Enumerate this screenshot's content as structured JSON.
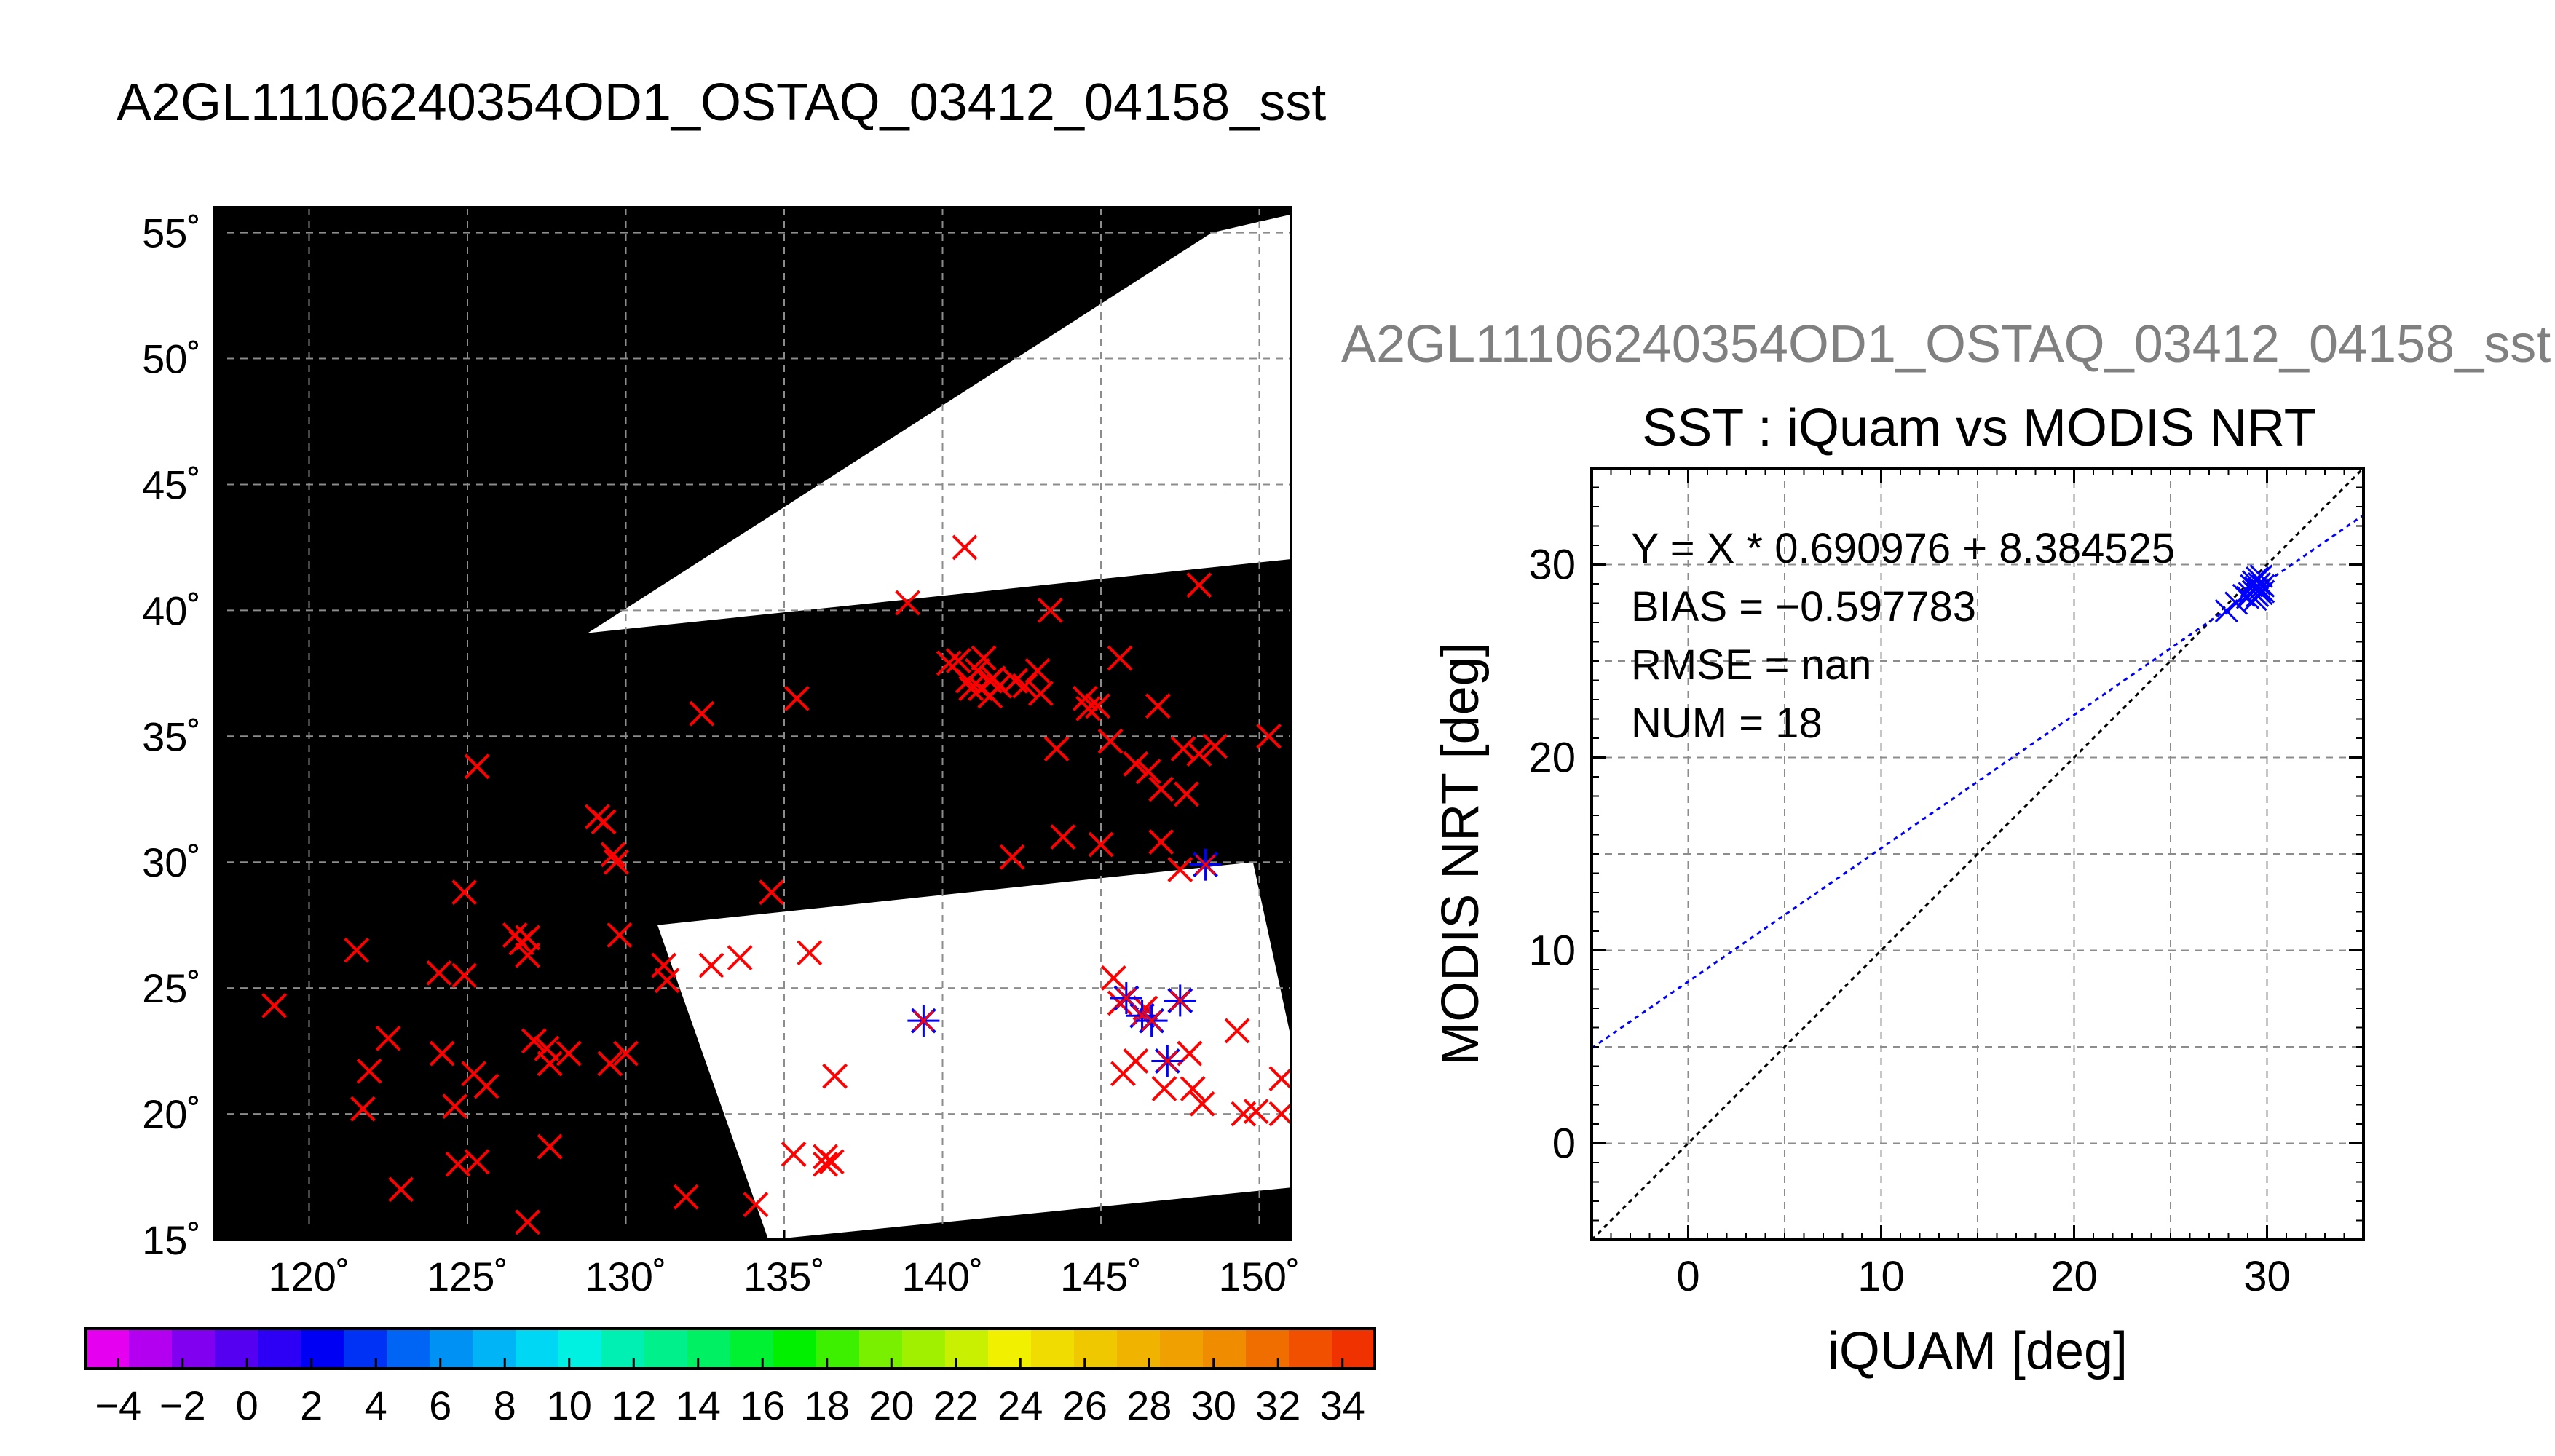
{
  "page_title": "A2GL11106240354OD1_OSTAQ_03412_04158_sst",
  "chart_data": [
    {
      "type": "map",
      "title": "A2GL11106240354OD1_OSTAQ_03412_04158_sst",
      "lon_range": [
        117,
        151
      ],
      "lat_range": [
        15,
        56
      ],
      "lon_ticks": [
        120,
        125,
        130,
        135,
        140,
        145,
        150
      ],
      "lat_ticks": [
        15,
        20,
        25,
        30,
        35,
        40,
        45,
        50,
        55
      ],
      "lon_tick_labels": [
        "120˚",
        "125˚",
        "130˚",
        "135˚",
        "140˚",
        "145˚",
        "150˚"
      ],
      "lat_tick_labels": [
        "15˚",
        "20˚",
        "25˚",
        "30˚",
        "35˚",
        "40˚",
        "45˚",
        "50˚",
        "55˚"
      ],
      "grid": true,
      "background_color": "#000000",
      "swaths": [
        {
          "name": "north",
          "corners": [
            [
              128.8,
              39.1
            ],
            [
              153.0,
              42.3
            ],
            [
              153.0,
              56.3
            ],
            [
              148.5,
              55.0
            ]
          ],
          "fill": "#ffffff"
        },
        {
          "name": "south",
          "corners": [
            [
              131.0,
              27.5
            ],
            [
              149.8,
              30.0
            ],
            [
              152.0,
              17.2
            ],
            [
              134.5,
              15.0
            ]
          ],
          "fill": "#ffffff"
        }
      ],
      "colorbar": {
        "min": -5,
        "max": 35,
        "ticks": [
          -4,
          -2,
          0,
          2,
          4,
          6,
          8,
          10,
          12,
          14,
          16,
          18,
          20,
          22,
          24,
          26,
          28,
          30,
          32,
          34
        ],
        "tick_labels": [
          "−4",
          "−2",
          "0",
          "2",
          "4",
          "6",
          "8",
          "10",
          "12",
          "14",
          "16",
          "18",
          "20",
          "22",
          "24",
          "26",
          "28",
          "30",
          "32",
          "34"
        ],
        "colors": [
          "#e600f0",
          "#b400f0",
          "#8200f0",
          "#5500f0",
          "#2d00f5",
          "#0000f5",
          "#0032f5",
          "#0064f5",
          "#0091f5",
          "#00b4f5",
          "#00d7f5",
          "#00f0e1",
          "#00f0b4",
          "#00f08c",
          "#00f064",
          "#00f032",
          "#00f000",
          "#3cf000",
          "#78f000",
          "#a0f000",
          "#c8f000",
          "#f0f000",
          "#f0dc00",
          "#f0c800",
          "#f0b400",
          "#f0a000",
          "#f08c00",
          "#f06e00",
          "#f05000",
          "#f03200"
        ]
      },
      "iquam_points": [
        [
          118.9,
          24.3
        ],
        [
          121.5,
          26.5
        ],
        [
          121.9,
          21.7
        ],
        [
          121.7,
          20.2
        ],
        [
          122.5,
          23.0
        ],
        [
          122.9,
          17.0
        ],
        [
          124.1,
          25.6
        ],
        [
          124.2,
          22.4
        ],
        [
          124.6,
          20.3
        ],
        [
          124.7,
          18.0
        ],
        [
          124.9,
          25.5
        ],
        [
          124.9,
          28.8
        ],
        [
          125.2,
          21.6
        ],
        [
          125.3,
          18.1
        ],
        [
          125.3,
          33.8
        ],
        [
          125.6,
          21.1
        ],
        [
          126.5,
          27.1
        ],
        [
          126.7,
          26.8
        ],
        [
          126.9,
          27.0
        ],
        [
          126.9,
          26.3
        ],
        [
          126.9,
          15.7
        ],
        [
          127.1,
          22.9
        ],
        [
          127.5,
          22.6
        ],
        [
          127.6,
          18.7
        ],
        [
          127.6,
          22.0
        ],
        [
          128.2,
          22.4
        ],
        [
          129.1,
          31.8
        ],
        [
          129.3,
          31.6
        ],
        [
          129.5,
          22.0
        ],
        [
          129.6,
          30.3
        ],
        [
          129.7,
          30.0
        ],
        [
          129.8,
          27.1
        ],
        [
          130.0,
          22.4
        ],
        [
          131.2,
          25.9
        ],
        [
          131.3,
          25.3
        ],
        [
          131.9,
          16.7
        ],
        [
          132.4,
          35.9
        ],
        [
          132.7,
          25.9
        ],
        [
          133.6,
          26.2
        ],
        [
          134.1,
          16.4
        ],
        [
          134.6,
          28.8
        ],
        [
          135.3,
          18.4
        ],
        [
          135.4,
          36.5
        ],
        [
          135.8,
          26.4
        ],
        [
          136.3,
          18.0
        ],
        [
          136.3,
          18.3
        ],
        [
          136.5,
          18.1
        ],
        [
          136.6,
          21.5
        ],
        [
          138.9,
          40.3
        ],
        [
          140.2,
          37.9
        ],
        [
          140.5,
          38.0
        ],
        [
          140.7,
          42.5
        ],
        [
          140.8,
          37.2
        ],
        [
          140.9,
          36.9
        ],
        [
          141.1,
          37.6
        ],
        [
          141.2,
          36.9
        ],
        [
          141.3,
          38.1
        ],
        [
          141.5,
          37.2
        ],
        [
          141.5,
          36.6
        ],
        [
          141.6,
          37.3
        ],
        [
          141.8,
          37.0
        ],
        [
          142.2,
          30.2
        ],
        [
          142.3,
          37.2
        ],
        [
          142.6,
          37.0
        ],
        [
          143.0,
          37.6
        ],
        [
          143.1,
          36.7
        ],
        [
          143.4,
          40.0
        ],
        [
          143.6,
          34.5
        ],
        [
          143.8,
          31.0
        ],
        [
          144.5,
          36.5
        ],
        [
          144.6,
          36.1
        ],
        [
          144.9,
          36.2
        ],
        [
          145.0,
          30.7
        ],
        [
          145.3,
          34.8
        ],
        [
          145.4,
          25.4
        ],
        [
          145.6,
          24.4
        ],
        [
          145.6,
          38.1
        ],
        [
          145.7,
          21.6
        ],
        [
          146.1,
          22.1
        ],
        [
          146.1,
          33.9
        ],
        [
          146.4,
          24.2
        ],
        [
          146.5,
          33.6
        ],
        [
          146.8,
          36.2
        ],
        [
          146.9,
          30.8
        ],
        [
          146.9,
          32.9
        ],
        [
          147.0,
          21.0
        ],
        [
          147.5,
          24.5
        ],
        [
          147.5,
          29.7
        ],
        [
          147.6,
          34.5
        ],
        [
          147.7,
          32.7
        ],
        [
          147.8,
          22.4
        ],
        [
          147.9,
          21.0
        ],
        [
          148.1,
          34.3
        ],
        [
          148.1,
          41.0
        ],
        [
          148.2,
          20.4
        ],
        [
          148.6,
          34.6
        ],
        [
          149.3,
          23.3
        ],
        [
          149.5,
          20.0
        ],
        [
          149.9,
          20.1
        ],
        [
          150.3,
          35.0
        ],
        [
          150.7,
          21.4
        ],
        [
          150.7,
          20.0
        ]
      ],
      "matchup_points": [
        [
          139.4,
          23.7
        ],
        [
          145.8,
          24.6
        ],
        [
          146.3,
          23.9
        ],
        [
          146.6,
          23.7
        ],
        [
          147.1,
          22.1
        ],
        [
          147.5,
          24.5
        ],
        [
          148.3,
          29.9
        ]
      ]
    },
    {
      "type": "scatter",
      "title": "SST : iQuam vs MODIS NRT",
      "subtitle": "A2GL11106240354OD1_OSTAQ_03412_04158_sst",
      "xlabel": "iQUAM [deg]",
      "ylabel": "MODIS NRT [deg]",
      "xlim": [
        -5,
        35
      ],
      "ylim": [
        -5,
        35
      ],
      "x_ticks": [
        0,
        10,
        20,
        30
      ],
      "y_ticks": [
        0,
        10,
        20,
        30
      ],
      "x_tick_labels": [
        "0",
        "10",
        "20",
        "30"
      ],
      "y_tick_labels": [
        "0",
        "10",
        "20",
        "30"
      ],
      "grid": true,
      "fit": {
        "slope": 0.690976,
        "intercept": 8.384525,
        "color": "#0000ff"
      },
      "identity_line_color": "#000000",
      "stats_lines": [
        "Y = X * 0.690976 + 8.384525",
        "BIAS = −0.597783",
        "RMSE = nan",
        "NUM = 18"
      ],
      "points": [
        {
          "x": 27.9,
          "y": 27.6
        },
        {
          "x": 28.4,
          "y": 28.0
        },
        {
          "x": 28.8,
          "y": 28.4
        },
        {
          "x": 29.0,
          "y": 28.3
        },
        {
          "x": 29.1,
          "y": 28.5
        },
        {
          "x": 29.2,
          "y": 28.9
        },
        {
          "x": 29.3,
          "y": 28.6
        },
        {
          "x": 29.3,
          "y": 29.1
        },
        {
          "x": 29.4,
          "y": 28.2
        },
        {
          "x": 29.4,
          "y": 28.8
        },
        {
          "x": 29.5,
          "y": 29.3
        },
        {
          "x": 29.5,
          "y": 28.4
        },
        {
          "x": 29.6,
          "y": 28.7
        },
        {
          "x": 29.6,
          "y": 29.0
        },
        {
          "x": 29.7,
          "y": 28.5
        },
        {
          "x": 29.7,
          "y": 29.4
        },
        {
          "x": 29.8,
          "y": 28.9
        },
        {
          "x": 29.8,
          "y": 28.6
        }
      ],
      "point_color": "#0000ff"
    }
  ]
}
